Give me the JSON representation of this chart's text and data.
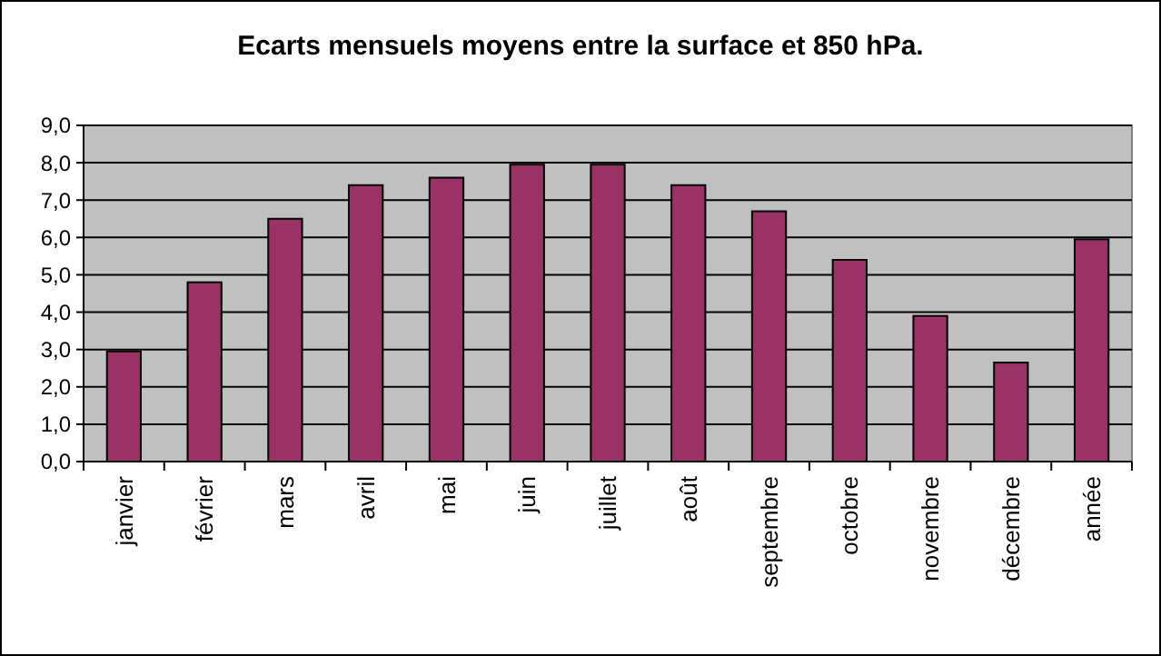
{
  "chart_data": {
    "type": "bar",
    "title": "Ecarts mensuels moyens entre la surface et 850 hPa.",
    "categories": [
      "janvier",
      "février",
      "mars",
      "avril",
      "mai",
      "juin",
      "juillet",
      "août",
      "septembre",
      "octobre",
      "novembre",
      "décembre",
      "année"
    ],
    "values": [
      2.95,
      4.8,
      6.5,
      7.4,
      7.6,
      7.95,
      7.95,
      7.4,
      6.7,
      5.4,
      3.9,
      2.65,
      5.95
    ],
    "color": "#993366",
    "ylim": [
      0,
      9
    ],
    "yticks": [
      {
        "value": 0,
        "label": "0,0"
      },
      {
        "value": 1,
        "label": "1,0"
      },
      {
        "value": 2,
        "label": "2,0"
      },
      {
        "value": 3,
        "label": "3,0"
      },
      {
        "value": 4,
        "label": "4,0"
      },
      {
        "value": 5,
        "label": "5,0"
      },
      {
        "value": 6,
        "label": "6,0"
      },
      {
        "value": 7,
        "label": "7,0"
      },
      {
        "value": 8,
        "label": "8,0"
      },
      {
        "value": 9,
        "label": "9,0"
      }
    ],
    "grid": "y"
  }
}
